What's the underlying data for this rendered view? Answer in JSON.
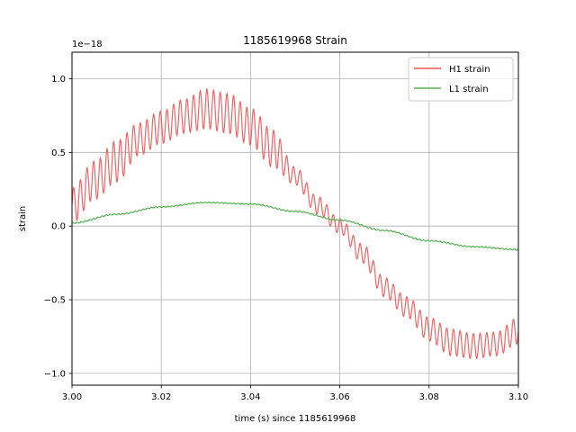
{
  "chart_data": {
    "type": "line",
    "title": "1185619968 Strain",
    "xlabel": "time (s) since 1185619968",
    "ylabel": "strain",
    "y_offset_text": "1e−18",
    "y_scale": 1e-18,
    "xlim": [
      3.0,
      3.1
    ],
    "ylim": [
      -1.08,
      1.18
    ],
    "grid": true,
    "legend_position": "top-right",
    "x_ticks": [
      "3.00",
      "3.02",
      "3.04",
      "3.06",
      "3.08",
      "3.10"
    ],
    "y_ticks": [
      "−1.0",
      "−0.5",
      "0.0",
      "0.5",
      "1.0"
    ],
    "series": [
      {
        "name": "H1 strain",
        "color": "#ef5454",
        "x": [
          3.0,
          3.005,
          3.01,
          3.015,
          3.02,
          3.025,
          3.03,
          3.035,
          3.04,
          3.045,
          3.05,
          3.055,
          3.06,
          3.065,
          3.07,
          3.075,
          3.08,
          3.085,
          3.09,
          3.095,
          3.1
        ],
        "upper": [
          0.26,
          0.44,
          0.58,
          0.7,
          0.78,
          0.86,
          0.93,
          0.9,
          0.8,
          0.65,
          0.4,
          0.2,
          0.05,
          -0.12,
          -0.35,
          -0.48,
          -0.62,
          -0.7,
          -0.73,
          -0.72,
          -0.62
        ],
        "lower": [
          0.02,
          0.18,
          0.3,
          0.48,
          0.56,
          0.63,
          0.66,
          0.63,
          0.55,
          0.4,
          0.28,
          0.08,
          -0.05,
          -0.25,
          -0.48,
          -0.62,
          -0.78,
          -0.88,
          -0.9,
          -0.88,
          -0.8
        ]
      },
      {
        "name": "L1 strain",
        "color": "#55b255",
        "x": [
          3.0,
          3.01,
          3.02,
          3.03,
          3.04,
          3.05,
          3.06,
          3.07,
          3.08,
          3.09,
          3.1
        ],
        "values": [
          0.02,
          0.08,
          0.13,
          0.16,
          0.15,
          0.1,
          0.04,
          -0.03,
          -0.1,
          -0.14,
          -0.16
        ]
      }
    ]
  }
}
